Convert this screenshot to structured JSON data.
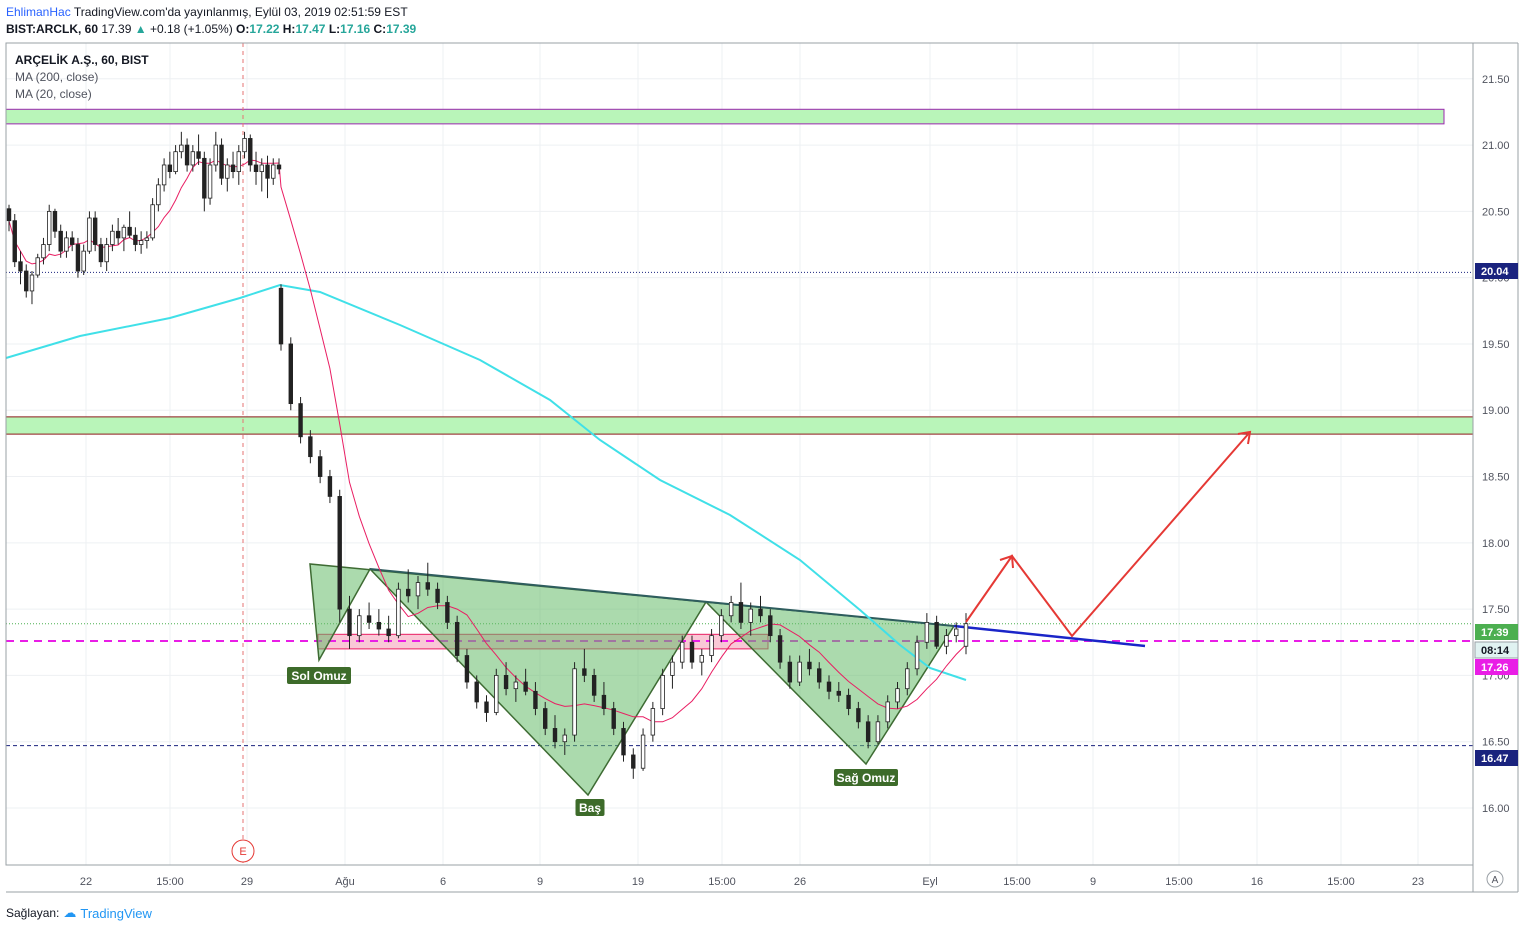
{
  "header": {
    "author": "EhlimanHac",
    "published": "TradingView.com'da yayınlanmış, Eylül 03, 2019 02:51:59 EST",
    "symbol_line": "BIST:ARCLK, 60",
    "last": "17.39",
    "change": "+0.18 (+1.05%)",
    "o_label": "O:",
    "o": "17.22",
    "h_label": "H:",
    "h": "17.47",
    "l_label": "L:",
    "l": "17.16",
    "c_label": "C:",
    "c": "17.39"
  },
  "overlay": {
    "title": "ARÇELİK A.Ş., 60, BIST",
    "ma200": "MA (200, close)",
    "ma20": "MA (20, close)"
  },
  "footer": {
    "label": "Sağlayan:",
    "brand": "TradingView"
  },
  "chart_data": {
    "type": "candlestick",
    "y_axis": {
      "ticks": [
        "21.50",
        "21.00",
        "20.50",
        "20.00",
        "19.50",
        "19.00",
        "18.50",
        "18.00",
        "17.50",
        "17.00",
        "16.50",
        "16.00"
      ],
      "range": [
        15.57,
        21.77
      ],
      "position": "right"
    },
    "x_axis": {
      "ticks": [
        "22",
        "15:00",
        "29",
        "Ağu",
        "6",
        "9",
        "19",
        "15:00",
        "26",
        "Eyl",
        "15:00",
        "9",
        "15:00",
        "16",
        "15:00",
        "23"
      ]
    },
    "price_labels": [
      {
        "text": "20.04",
        "color": "#1a237e"
      },
      {
        "text": "17.39",
        "color": "#4caf50"
      },
      {
        "text": "08:14",
        "color": "#e0f2f1"
      },
      {
        "text": "17.26",
        "color": "#e91ee6"
      },
      {
        "text": "16.47",
        "color": "#1a237e"
      }
    ],
    "horizontal_lines": [
      {
        "price": 20.04,
        "style": "dotted",
        "color": "#1a237e"
      },
      {
        "price": 17.39,
        "style": "dotted",
        "color": "#4caf50"
      },
      {
        "price": 17.26,
        "style": "dashed",
        "color": "#e91ee6"
      },
      {
        "price": 16.47,
        "style": "dashed",
        "color": "#1a237e"
      }
    ],
    "zones": [
      {
        "top": 21.27,
        "bottom": 21.16,
        "color": "#b9f5b9"
      },
      {
        "top": 18.95,
        "bottom": 18.82,
        "color": "#b9f5b9"
      },
      {
        "top": 17.31,
        "bottom": 17.2,
        "color": "#f7b6c8"
      }
    ],
    "pattern_labels": [
      "Sol Omuz",
      "Baş",
      "Sağ Omuz"
    ],
    "event_marker": "E",
    "corner_badge": "A",
    "candles": [
      [
        20.52,
        20.55,
        20.35,
        20.43
      ],
      [
        20.43,
        20.48,
        20.08,
        20.12
      ],
      [
        20.12,
        20.2,
        19.95,
        20.05
      ],
      [
        20.05,
        20.1,
        19.85,
        19.9
      ],
      [
        19.9,
        20.05,
        19.8,
        20.02
      ],
      [
        20.02,
        20.18,
        20.0,
        20.15
      ],
      [
        20.15,
        20.3,
        20.1,
        20.25
      ],
      [
        20.25,
        20.55,
        20.2,
        20.5
      ],
      [
        20.5,
        20.52,
        20.3,
        20.35
      ],
      [
        20.35,
        20.4,
        20.15,
        20.2
      ],
      [
        20.2,
        20.35,
        20.15,
        20.3
      ],
      [
        20.3,
        20.35,
        20.2,
        20.25
      ],
      [
        20.25,
        20.3,
        20.0,
        20.05
      ],
      [
        20.05,
        20.25,
        20.02,
        20.2
      ],
      [
        20.2,
        20.5,
        20.18,
        20.45
      ],
      [
        20.45,
        20.5,
        20.2,
        20.25
      ],
      [
        20.25,
        20.3,
        20.08,
        20.12
      ],
      [
        20.12,
        20.3,
        20.05,
        20.25
      ],
      [
        20.25,
        20.4,
        20.2,
        20.35
      ],
      [
        20.35,
        20.45,
        20.25,
        20.3
      ],
      [
        20.3,
        20.4,
        20.2,
        20.38
      ],
      [
        20.38,
        20.5,
        20.3,
        20.32
      ],
      [
        20.32,
        20.38,
        20.2,
        20.25
      ],
      [
        20.25,
        20.35,
        20.18,
        20.28
      ],
      [
        20.28,
        20.35,
        20.22,
        20.3
      ],
      [
        20.3,
        20.6,
        20.28,
        20.55
      ],
      [
        20.55,
        20.75,
        20.5,
        20.7
      ],
      [
        20.7,
        20.9,
        20.65,
        20.85
      ],
      [
        20.85,
        20.95,
        20.75,
        20.8
      ],
      [
        20.8,
        21.0,
        20.78,
        20.95
      ],
      [
        20.95,
        21.1,
        20.9,
        21.0
      ],
      [
        21.0,
        21.05,
        20.8,
        20.85
      ],
      [
        20.85,
        21.0,
        20.8,
        20.95
      ],
      [
        20.95,
        21.08,
        20.85,
        20.9
      ],
      [
        20.9,
        20.95,
        20.5,
        20.6
      ],
      [
        20.6,
        20.9,
        20.55,
        20.85
      ],
      [
        20.85,
        21.1,
        20.8,
        21.0
      ],
      [
        21.0,
        21.05,
        20.7,
        20.75
      ],
      [
        20.75,
        20.9,
        20.65,
        20.85
      ],
      [
        20.85,
        20.95,
        20.75,
        20.8
      ],
      [
        20.8,
        21.0,
        20.7,
        20.95
      ],
      [
        20.95,
        21.1,
        20.9,
        21.05
      ],
      [
        21.05,
        21.08,
        20.8,
        20.85
      ],
      [
        20.85,
        20.95,
        20.7,
        20.8
      ],
      [
        20.8,
        20.9,
        20.65,
        20.85
      ],
      [
        20.85,
        20.92,
        20.6,
        20.75
      ],
      [
        20.75,
        20.9,
        20.7,
        20.85
      ],
      [
        20.85,
        20.9,
        20.78,
        20.82
      ],
      [
        19.92,
        19.95,
        19.45,
        19.5
      ],
      [
        19.5,
        19.55,
        19.0,
        19.05
      ],
      [
        19.05,
        19.1,
        18.75,
        18.8
      ],
      [
        18.8,
        18.85,
        18.6,
        18.65
      ],
      [
        18.65,
        18.7,
        18.45,
        18.5
      ],
      [
        18.5,
        18.55,
        18.3,
        18.35
      ],
      [
        18.35,
        18.4,
        17.4,
        17.5
      ],
      [
        17.5,
        17.6,
        17.2,
        17.3
      ],
      [
        17.3,
        17.5,
        17.25,
        17.45
      ],
      [
        17.45,
        17.55,
        17.35,
        17.4
      ],
      [
        17.4,
        17.5,
        17.3,
        17.35
      ],
      [
        17.35,
        17.45,
        17.25,
        17.3
      ],
      [
        17.3,
        17.7,
        17.28,
        17.65
      ],
      [
        17.65,
        17.8,
        17.55,
        17.6
      ],
      [
        17.6,
        17.75,
        17.5,
        17.7
      ],
      [
        17.7,
        17.85,
        17.6,
        17.65
      ],
      [
        17.65,
        17.7,
        17.5,
        17.55
      ],
      [
        17.55,
        17.6,
        17.35,
        17.4
      ],
      [
        17.4,
        17.45,
        17.1,
        17.15
      ],
      [
        17.15,
        17.2,
        16.9,
        16.95
      ],
      [
        16.95,
        17.0,
        16.75,
        16.8
      ],
      [
        16.8,
        16.85,
        16.65,
        16.72
      ],
      [
        16.72,
        17.05,
        16.7,
        17.0
      ],
      [
        17.0,
        17.1,
        16.85,
        16.9
      ],
      [
        16.9,
        17.0,
        16.8,
        16.95
      ],
      [
        16.95,
        17.05,
        16.85,
        16.88
      ],
      [
        16.88,
        16.95,
        16.7,
        16.75
      ],
      [
        16.75,
        16.8,
        16.55,
        16.6
      ],
      [
        16.6,
        16.7,
        16.45,
        16.5
      ],
      [
        16.5,
        16.6,
        16.4,
        16.55
      ],
      [
        16.55,
        17.1,
        16.5,
        17.05
      ],
      [
        17.05,
        17.2,
        16.95,
        17.0
      ],
      [
        17.0,
        17.05,
        16.8,
        16.85
      ],
      [
        16.85,
        16.95,
        16.7,
        16.75
      ],
      [
        16.75,
        16.8,
        16.55,
        16.6
      ],
      [
        16.6,
        16.65,
        16.35,
        16.4
      ],
      [
        16.4,
        16.45,
        16.22,
        16.3
      ],
      [
        16.3,
        16.6,
        16.28,
        16.55
      ],
      [
        16.55,
        16.8,
        16.5,
        16.75
      ],
      [
        16.75,
        17.05,
        16.7,
        17.0
      ],
      [
        17.0,
        17.15,
        16.9,
        17.1
      ],
      [
        17.1,
        17.3,
        17.05,
        17.25
      ],
      [
        17.25,
        17.3,
        17.05,
        17.1
      ],
      [
        17.1,
        17.2,
        17.0,
        17.15
      ],
      [
        17.15,
        17.35,
        17.1,
        17.3
      ],
      [
        17.3,
        17.5,
        17.25,
        17.45
      ],
      [
        17.45,
        17.6,
        17.4,
        17.55
      ],
      [
        17.55,
        17.7,
        17.35,
        17.4
      ],
      [
        17.4,
        17.55,
        17.3,
        17.5
      ],
      [
        17.5,
        17.6,
        17.4,
        17.45
      ],
      [
        17.45,
        17.5,
        17.25,
        17.3
      ],
      [
        17.3,
        17.35,
        17.05,
        17.1
      ],
      [
        17.1,
        17.15,
        16.9,
        16.95
      ],
      [
        16.95,
        17.15,
        16.92,
        17.1
      ],
      [
        17.1,
        17.2,
        17.0,
        17.05
      ],
      [
        17.05,
        17.1,
        16.9,
        16.95
      ],
      [
        16.95,
        17.0,
        16.82,
        16.88
      ],
      [
        16.88,
        16.95,
        16.8,
        16.85
      ],
      [
        16.85,
        16.9,
        16.7,
        16.75
      ],
      [
        16.75,
        16.8,
        16.6,
        16.65
      ],
      [
        16.65,
        16.7,
        16.45,
        16.5
      ],
      [
        16.5,
        16.7,
        16.48,
        16.65
      ],
      [
        16.65,
        16.85,
        16.6,
        16.8
      ],
      [
        16.8,
        16.95,
        16.75,
        16.9
      ],
      [
        16.9,
        17.1,
        16.85,
        17.05
      ],
      [
        17.05,
        17.3,
        17.0,
        17.25
      ],
      [
        17.25,
        17.47,
        17.2,
        17.4
      ],
      [
        17.4,
        17.45,
        17.2,
        17.22
      ],
      [
        17.22,
        17.35,
        17.16,
        17.3
      ],
      [
        17.3,
        17.4,
        17.25,
        17.35
      ],
      [
        17.22,
        17.47,
        17.16,
        17.39
      ]
    ]
  }
}
